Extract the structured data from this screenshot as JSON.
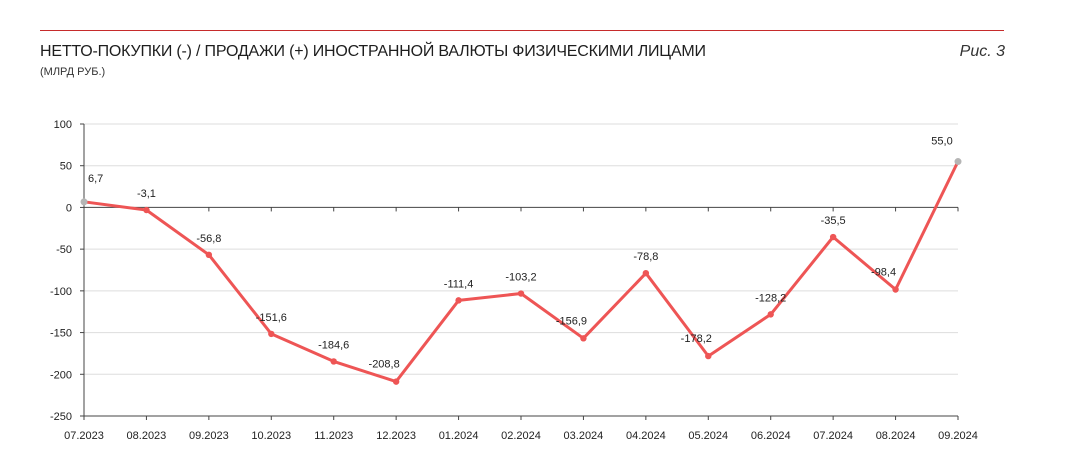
{
  "header": {
    "title": "НЕТТО-ПОКУПКИ (-) / ПРОДАЖИ (+) ИНОСТРАННОЙ ВАЛЮТЫ ФИЗИЧЕСКИМИ ЛИЦАМИ",
    "subtitle": "(МЛРД РУБ.)",
    "figure_label": "Рис. 3"
  },
  "colors": {
    "line": "#ee5555",
    "endpoint_marker": "#b5b5b5",
    "rule": "#c62b2b",
    "axis": "#444444",
    "grid": "#dddddd"
  },
  "chart_data": {
    "type": "line",
    "title": "НЕТТО-ПОКУПКИ (-) / ПРОДАЖИ (+) ИНОСТРАННОЙ ВАЛЮТЫ ФИЗИЧЕСКИМИ ЛИЦАМИ",
    "subtitle": "(МЛРД РУБ.)",
    "categories": [
      "07.2023",
      "08.2023",
      "09.2023",
      "10.2023",
      "11.2023",
      "12.2023",
      "01.2024",
      "02.2024",
      "03.2024",
      "04.2024",
      "05.2024",
      "06.2024",
      "07.2024",
      "08.2024",
      "09.2024"
    ],
    "values": [
      6.7,
      -3.1,
      -56.8,
      -151.6,
      -184.6,
      -208.8,
      -111.4,
      -103.2,
      -156.9,
      -78.8,
      -178.2,
      -128.2,
      -35.5,
      -98.4,
      55.0
    ],
    "data_labels": [
      "6,7",
      "-3,1",
      "-56,8",
      "-151,6",
      "-184,6",
      "-208,8",
      "-111,4",
      "-103,2",
      "-156,9",
      "-78,8",
      "-178,2",
      "-128,2",
      "-35,5",
      "-98,4",
      "55,0"
    ],
    "yticks": [
      100,
      50,
      0,
      -50,
      -100,
      -150,
      -200,
      -250
    ],
    "ytick_labels": [
      "100",
      "50",
      "0",
      "-50",
      "-100",
      "-150",
      "-200",
      "-250"
    ],
    "ylim": [
      -250,
      100
    ],
    "grid": true,
    "legend": "none"
  }
}
